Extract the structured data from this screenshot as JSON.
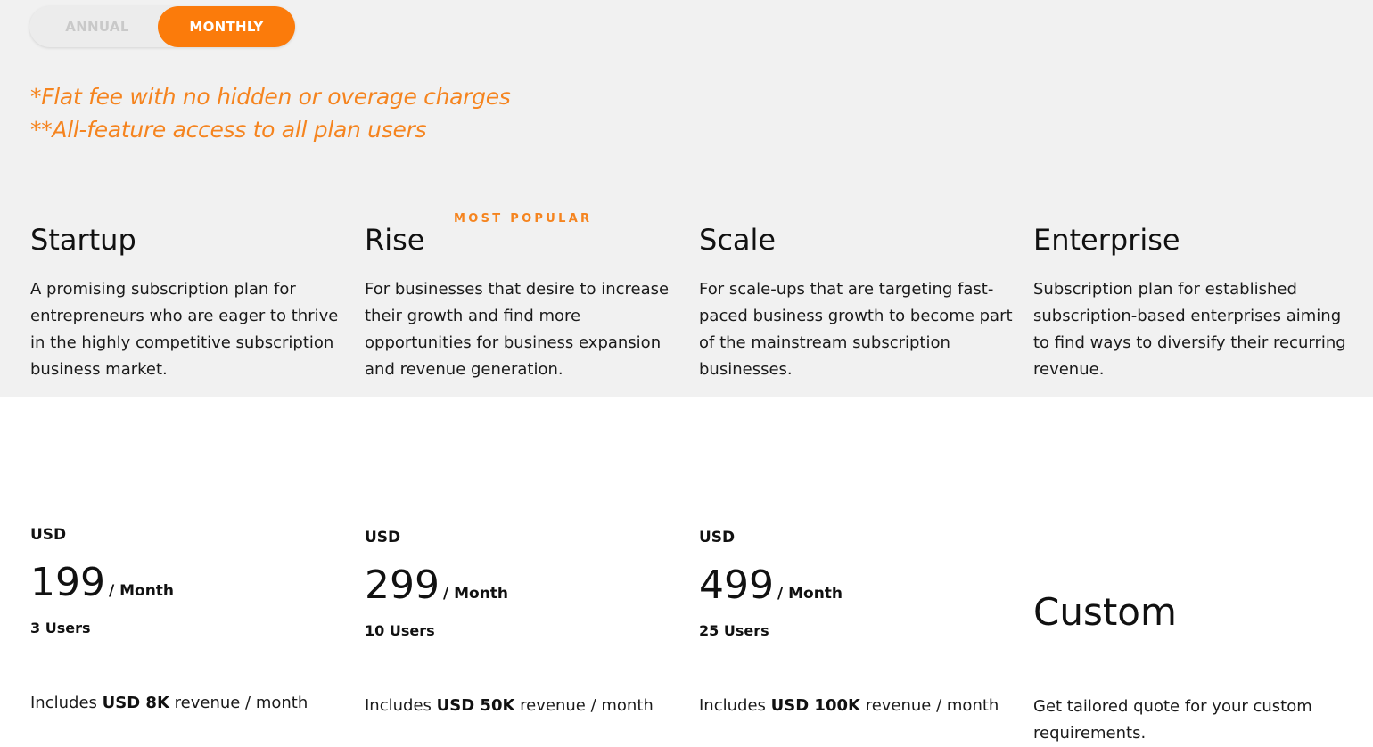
{
  "billing_toggle": {
    "annual_label": "ANNUAL",
    "monthly_label": "MONTHLY",
    "selected": "MONTHLY"
  },
  "notes": {
    "line1": "*Flat fee with no hidden or overage charges",
    "line2": "**All-feature access to all plan users"
  },
  "badge": "MOST POPULAR",
  "plans": [
    {
      "name": "Startup",
      "description": "A promising subscription plan for entrepreneurs who are eager to thrive in the highly competitive subscription business market.",
      "currency": "USD",
      "price": "199",
      "period": "/ Month",
      "users": "3 Users",
      "includes_prefix": "Includes",
      "includes_amount": "USD 8K",
      "includes_suffix": "revenue / month"
    },
    {
      "name": "Rise",
      "description": "For businesses that desire to increase their growth and find more opportunities for business expansion and revenue generation.",
      "currency": "USD",
      "price": "299",
      "period": "/ Month",
      "users": "10 Users",
      "includes_prefix": "Includes",
      "includes_amount": "USD 50K",
      "includes_suffix": "revenue / month"
    },
    {
      "name": "Scale",
      "description": "For scale-ups that are targeting fast-paced business growth to become part of the mainstream subscription businesses.",
      "currency": "USD",
      "price": "499",
      "period": "/ Month",
      "users": "25 Users",
      "includes_prefix": "Includes",
      "includes_amount": "USD 100K",
      "includes_suffix": "revenue / month"
    },
    {
      "name": "Enterprise",
      "description": "Subscription plan for established subscription-based enterprises aiming to find ways to diversify their recurring revenue.",
      "price": "Custom",
      "note": "Get tailored quote for your custom requirements."
    }
  ],
  "colors": {
    "accent": "#fb7b0b",
    "note_text": "#f5841f",
    "band_background": "#f1f1f1"
  }
}
